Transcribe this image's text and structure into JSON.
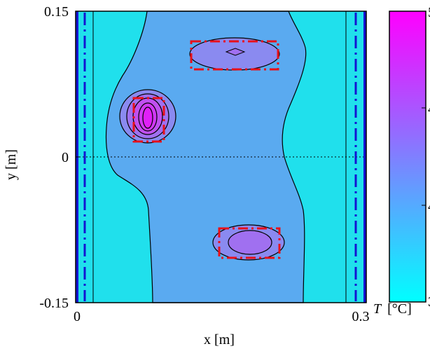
{
  "chart_data": {
    "type": "contour",
    "xlabel": "x [m]",
    "ylabel": "y [m]",
    "xlim": [
      0,
      0.3
    ],
    "ylim": [
      -0.15,
      0.15
    ],
    "x_ticks": [
      "0",
      "0.3"
    ],
    "y_ticks": [
      "0.15",
      "0",
      "-0.15"
    ],
    "colorbar": {
      "label_italic": "T",
      "label_unit": "[°C]",
      "tick_labels": [
        "5",
        "4",
        "4",
        "3"
      ],
      "colormap": "cool",
      "colors": {
        "low": "#00ffff",
        "high": "#ff00ff"
      }
    },
    "contour_fill_colors": [
      "#20e0ec",
      "#40c8f0",
      "#5aaaf0",
      "#8a8af0",
      "#a070f0",
      "#c050f0",
      "#e020f8"
    ],
    "overlays": {
      "zero_line": "dotted",
      "dashed_outline_color": "#e8101a",
      "dash_dot_line_color": "#1414d2"
    }
  }
}
